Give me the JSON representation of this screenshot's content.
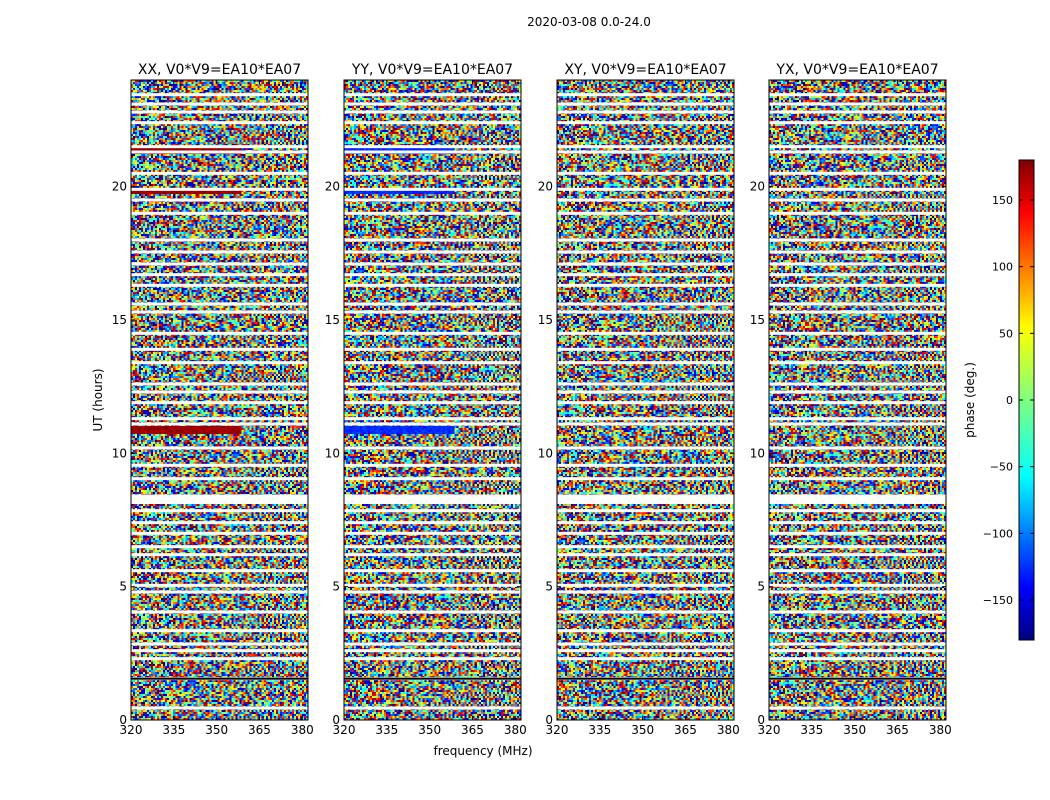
{
  "chart_data": {
    "type": "heatmap",
    "suptitle": "2020-03-08 0.0-24.0",
    "xlabel": "frequency (MHz)",
    "ylabel": "UT (hours)",
    "x_ticks": [
      "320",
      "335",
      "350",
      "365",
      "380"
    ],
    "x_tick_values": [
      320,
      335,
      350,
      365,
      380
    ],
    "xlim": [
      320,
      382
    ],
    "y_ticks": [
      "0",
      "5",
      "10",
      "15",
      "20"
    ],
    "y_tick_values": [
      0,
      5,
      10,
      15,
      20
    ],
    "ylim": [
      0,
      24
    ],
    "colorbar": {
      "label": "phase (deg.)",
      "ticks": [
        "150",
        "100",
        "50",
        "0",
        "−50",
        "−100",
        "−150"
      ],
      "tick_values": [
        150,
        100,
        50,
        0,
        -50,
        -100,
        -150
      ],
      "range": [
        -180,
        180
      ],
      "colormap": "jet"
    },
    "panels": [
      {
        "title": "XX, V0*V9=EA10*EA07",
        "band_phase": 170
      },
      {
        "title": "YY, V0*V9=EA10*EA07",
        "band_phase": -120
      },
      {
        "title": "XY, V0*V9=EA10*EA07",
        "band_phase": null
      },
      {
        "title": "YX, V0*V9=EA10*EA07",
        "band_phase": null
      }
    ],
    "gap_hours": [
      0.45,
      1.55,
      2.3,
      2.6,
      2.85,
      3.35,
      4.05,
      4.8,
      5.05,
      5.6,
      6.2,
      6.5,
      7.0,
      7.4,
      7.85,
      8.25,
      8.4,
      9.05,
      9.55,
      10.2,
      11.1,
      11.3,
      11.9,
      12.3,
      12.6,
      13.4,
      13.9,
      14.5,
      15.3,
      15.6,
      16.3,
      16.7,
      17.1,
      17.55,
      18.0,
      19.0,
      19.5,
      19.9,
      20.5,
      21.3,
      21.5,
      22.4,
      22.8,
      23.1,
      23.45
    ]
  }
}
